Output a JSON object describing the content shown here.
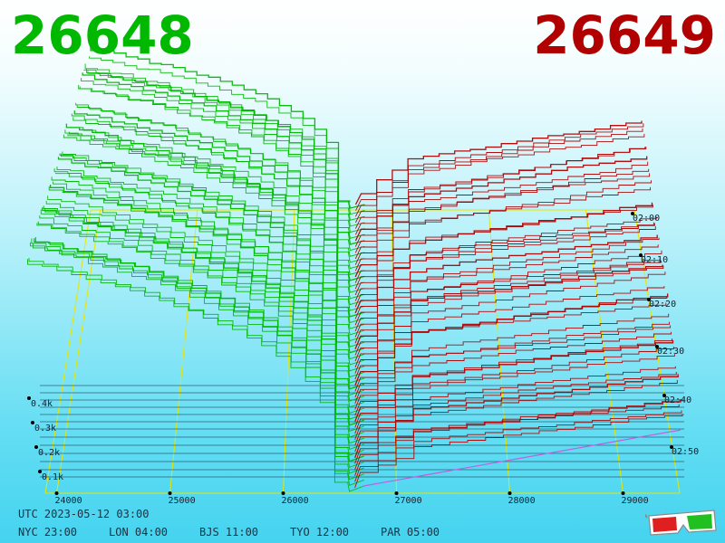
{
  "prices": {
    "bid": "26648",
    "ask": "26649"
  },
  "colors": {
    "bid": "#00b800",
    "ask": "#b00000",
    "grid": "#e6e600",
    "mid_trace": "#c060e0"
  },
  "timezones": {
    "utc": "UTC 2023-05-12 03:00",
    "cities": [
      "NYC 23:00",
      "LON 04:00",
      "BJS 11:00",
      "TYO 12:00",
      "PAR 05:00"
    ]
  },
  "chart_data": {
    "type": "area",
    "description_of_axes": "order book depth over time",
    "x_axis": {
      "label": "",
      "ticks": [
        "24000",
        "25000",
        "26000",
        "27000",
        "28000",
        "29000"
      ],
      "range": [
        23900,
        29500
      ]
    },
    "y_axis": {
      "label": "",
      "ticks": [
        "0.1k",
        "0.2k",
        "0.3k",
        "0.4k"
      ]
    },
    "time_axis": {
      "label": "",
      "ticks": [
        "02:00",
        "02:10",
        "02:20",
        "02:30",
        "02:40",
        "02:50"
      ]
    },
    "mid_price": 26648.5,
    "series": [
      {
        "side": "bid",
        "snapshots": 48
      },
      {
        "side": "ask",
        "snapshots": 48
      }
    ],
    "grid": true,
    "icon": "3d-glasses-icon"
  }
}
